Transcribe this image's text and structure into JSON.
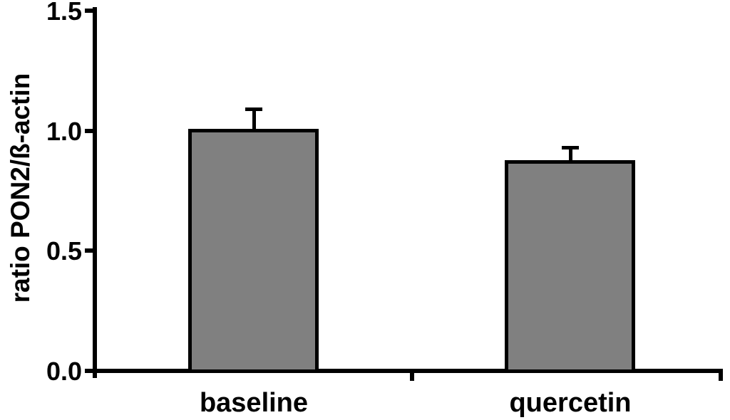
{
  "colors": {
    "bar_fill": "#808080",
    "axis": "#000000",
    "text": "#000000",
    "background": "#ffffff"
  },
  "chart_data": {
    "type": "bar",
    "title": "",
    "xlabel": "",
    "ylabel": "ratio PON2/ß-actin",
    "categories": [
      "baseline",
      "quercetin"
    ],
    "values": [
      1.0,
      0.87
    ],
    "errors_plus": [
      0.09,
      0.06
    ],
    "ylim": [
      0.0,
      1.5
    ],
    "yticks": [
      0.0,
      0.5,
      1.0,
      1.5
    ],
    "ytick_labels": [
      "0.0",
      "0.5",
      "1.0",
      "1.5"
    ],
    "grid": false,
    "legend": "none",
    "bar_style": "gray fill, thick black outline, error bars show +SEM only"
  }
}
